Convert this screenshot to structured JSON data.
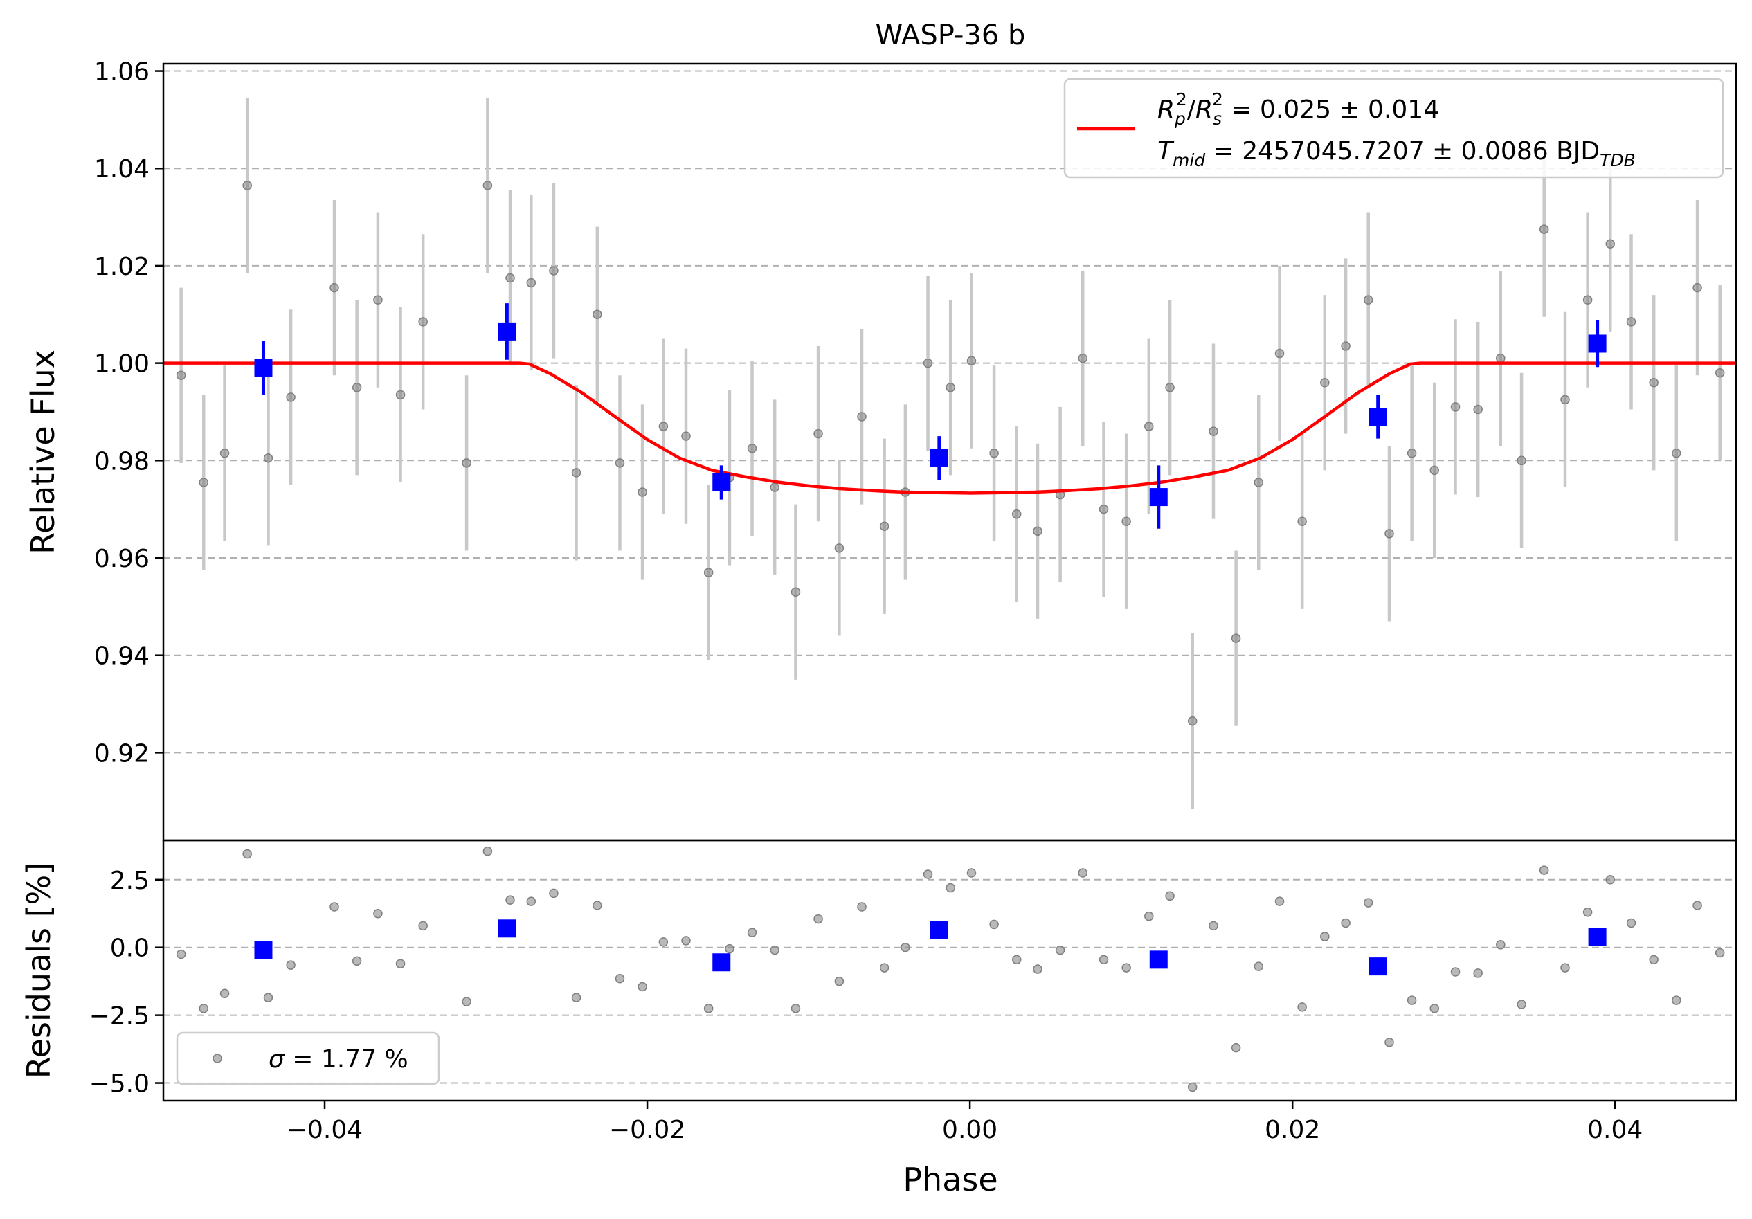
{
  "chart_data": [
    {
      "type": "scatter",
      "panel": "main",
      "title": "WASP-36 b",
      "xlabel": "",
      "ylabel": "Relative Flux",
      "xlim": [
        -0.05,
        0.0475
      ],
      "ylim": [
        0.902,
        1.0615
      ],
      "yticks": [
        0.92,
        0.94,
        0.96,
        0.98,
        1.0,
        1.02,
        1.04,
        1.06
      ],
      "ytick_labels": [
        "0.92",
        "0.94",
        "0.96",
        "0.98",
        "1.00",
        "1.02",
        "1.04",
        "1.06"
      ],
      "grid": "horizontal dashed",
      "legend_position": "top-right",
      "legend": [
        {
          "line1": "R_p^2/R_s^2 = 0.025 ± 0.014",
          "line2": "T_mid = 2457045.7207 ± 0.0086 BJD_TDB"
        }
      ],
      "legend_parts": {
        "r_sym": "R",
        "p_sub": "p",
        "sq": "2",
        "slash": "/",
        "s_sub": "s",
        "rp_value": " = 0.025 ± 0.014",
        "t_sym": "T",
        "mid_sub": "mid",
        "tmid_value": " = 2457045.7207 ± 0.0086 BJD",
        "tdb_sub": "TDB"
      },
      "colors": {
        "data": "#808080",
        "errorbar": "#c8c8c8",
        "binned": "#0000ff",
        "model": "#ff0000"
      },
      "data_points": {
        "x": [
          -0.0489,
          -0.0475,
          -0.0462,
          -0.0448,
          -0.0435,
          -0.0421,
          -0.0394,
          -0.038,
          -0.0367,
          -0.0353,
          -0.0339,
          -0.0312,
          -0.0299,
          -0.0285,
          -0.0272,
          -0.0258,
          -0.0244,
          -0.0231,
          -0.0217,
          -0.0203,
          -0.019,
          -0.0176,
          -0.0162,
          -0.0149,
          -0.0135,
          -0.0121,
          -0.0108,
          -0.0094,
          -0.0081,
          -0.0067,
          -0.0053,
          -0.004,
          -0.0026,
          -0.0012,
          0.0001,
          0.0015,
          0.0029,
          0.0042,
          0.0056,
          0.007,
          0.0083,
          0.0097,
          0.0111,
          0.0124,
          0.0138,
          0.0151,
          0.0165,
          0.0179,
          0.0192,
          0.0206,
          0.022,
          0.0233,
          0.0247,
          0.026,
          0.0274,
          0.0288,
          0.0301,
          0.0315,
          0.0329,
          0.0342,
          0.0356,
          0.0369,
          0.0383,
          0.0397,
          0.041,
          0.0424,
          0.0438,
          0.0451,
          0.0465
        ],
        "y": [
          0.9975,
          0.9755,
          0.9815,
          1.0365,
          0.9805,
          0.993,
          1.0155,
          0.995,
          1.013,
          0.9935,
          1.0085,
          0.9795,
          1.0365,
          1.0175,
          1.0165,
          1.019,
          0.9775,
          1.01,
          0.9795,
          0.9735,
          0.987,
          0.985,
          0.957,
          0.9765,
          0.9825,
          0.9745,
          0.953,
          0.9855,
          0.962,
          0.989,
          0.9665,
          0.9735,
          1.0,
          0.995,
          1.0005,
          0.9815,
          0.969,
          0.9655,
          0.973,
          1.001,
          0.97,
          0.9675,
          0.987,
          0.995,
          0.9265,
          0.986,
          0.9435,
          0.9755,
          1.002,
          0.9675,
          0.996,
          1.0035,
          1.013,
          0.965,
          0.9815,
          0.978,
          0.991,
          0.9905,
          1.001,
          0.98,
          1.0275,
          0.9925,
          1.013,
          1.0245,
          1.0085,
          0.996,
          0.9815,
          1.0155,
          0.998
        ],
        "err": 0.018
      },
      "binned": {
        "x": [
          -0.0438,
          -0.0287,
          -0.0154,
          -0.0019,
          0.0117,
          0.0253,
          0.0389
        ],
        "y": [
          0.999,
          1.0065,
          0.9755,
          0.9805,
          0.9725,
          0.989,
          1.004
        ],
        "err": [
          0.0055,
          0.0058,
          0.0035,
          0.0045,
          0.0065,
          0.0045,
          0.0048
        ]
      },
      "model": {
        "x": [
          -0.05,
          -0.0279,
          -0.0273,
          -0.026,
          -0.024,
          -0.022,
          -0.02,
          -0.018,
          -0.016,
          -0.014,
          -0.012,
          -0.01,
          -0.008,
          -0.006,
          -0.004,
          -0.002,
          0.0,
          0.002,
          0.004,
          0.006,
          0.008,
          0.01,
          0.012,
          0.014,
          0.016,
          0.018,
          0.02,
          0.022,
          0.024,
          0.026,
          0.0273,
          0.0279,
          0.0475
        ],
        "y": [
          1.0,
          1.0,
          0.9998,
          0.9978,
          0.9938,
          0.989,
          0.9843,
          0.9805,
          0.978,
          0.9767,
          0.9756,
          0.9748,
          0.9742,
          0.9738,
          0.9735,
          0.9734,
          0.9733,
          0.9734,
          0.9735,
          0.9738,
          0.9742,
          0.9748,
          0.9756,
          0.9767,
          0.978,
          0.9805,
          0.9843,
          0.989,
          0.9938,
          0.9978,
          0.9998,
          1.0,
          1.0
        ]
      }
    },
    {
      "type": "scatter",
      "panel": "residuals",
      "xlabel": "Phase",
      "ylabel": "Residuals [%]",
      "xlim": [
        -0.05,
        0.0475
      ],
      "ylim": [
        -5.65,
        3.95
      ],
      "xticks": [
        -0.04,
        -0.02,
        0.0,
        0.02,
        0.04
      ],
      "xtick_labels": [
        "−0.04",
        "−0.02",
        "0.00",
        "0.02",
        "0.04"
      ],
      "yticks": [
        -5.0,
        -2.5,
        0.0,
        2.5
      ],
      "ytick_labels": [
        "−5.0",
        "−2.5",
        "0.0",
        "2.5"
      ],
      "grid": "horizontal dashed",
      "legend_position": "bottom-left",
      "legend": [
        {
          "label": "σ = 1.77 %"
        }
      ],
      "legend_parts": {
        "sigma": "σ",
        "value": " = 1.77 %"
      },
      "data_points": {
        "x": [
          -0.0489,
          -0.0475,
          -0.0462,
          -0.0448,
          -0.0435,
          -0.0421,
          -0.0394,
          -0.038,
          -0.0367,
          -0.0353,
          -0.0339,
          -0.0312,
          -0.0299,
          -0.0285,
          -0.0272,
          -0.0258,
          -0.0244,
          -0.0231,
          -0.0217,
          -0.0203,
          -0.019,
          -0.0176,
          -0.0162,
          -0.0149,
          -0.0135,
          -0.0121,
          -0.0108,
          -0.0094,
          -0.0081,
          -0.0067,
          -0.0053,
          -0.004,
          -0.0026,
          -0.0012,
          0.0001,
          0.0015,
          0.0029,
          0.0042,
          0.0056,
          0.007,
          0.0083,
          0.0097,
          0.0111,
          0.0124,
          0.0138,
          0.0151,
          0.0165,
          0.0179,
          0.0192,
          0.0206,
          0.022,
          0.0233,
          0.0247,
          0.026,
          0.0274,
          0.0288,
          0.0301,
          0.0315,
          0.0329,
          0.0342,
          0.0356,
          0.0369,
          0.0383,
          0.0397,
          0.041,
          0.0424,
          0.0438,
          0.0451,
          0.0465
        ],
        "y": [
          -0.25,
          -2.25,
          -1.7,
          3.45,
          -1.85,
          -0.65,
          1.5,
          -0.5,
          1.25,
          -0.6,
          0.8,
          -2.0,
          3.55,
          1.75,
          1.7,
          2.0,
          -1.85,
          1.55,
          -1.15,
          -1.45,
          0.2,
          0.25,
          -2.25,
          -0.05,
          0.55,
          -0.1,
          -2.25,
          1.05,
          -1.25,
          1.5,
          -0.75,
          0.0,
          2.7,
          2.2,
          2.75,
          0.85,
          -0.45,
          -0.8,
          -0.1,
          2.75,
          -0.45,
          -0.75,
          1.15,
          1.9,
          -5.15,
          0.8,
          -3.7,
          -0.7,
          1.7,
          -2.2,
          0.4,
          0.9,
          1.65,
          -3.5,
          -1.95,
          -2.25,
          -0.9,
          -0.95,
          0.1,
          -2.1,
          2.85,
          -0.75,
          1.3,
          2.5,
          0.9,
          -0.45,
          -1.95,
          1.55,
          -0.2
        ]
      },
      "binned": {
        "x": [
          -0.0438,
          -0.0287,
          -0.0154,
          -0.0019,
          0.0117,
          0.0253,
          0.0389
        ],
        "y": [
          -0.1,
          0.7,
          -0.55,
          0.65,
          -0.45,
          -0.7,
          0.4
        ]
      }
    }
  ]
}
